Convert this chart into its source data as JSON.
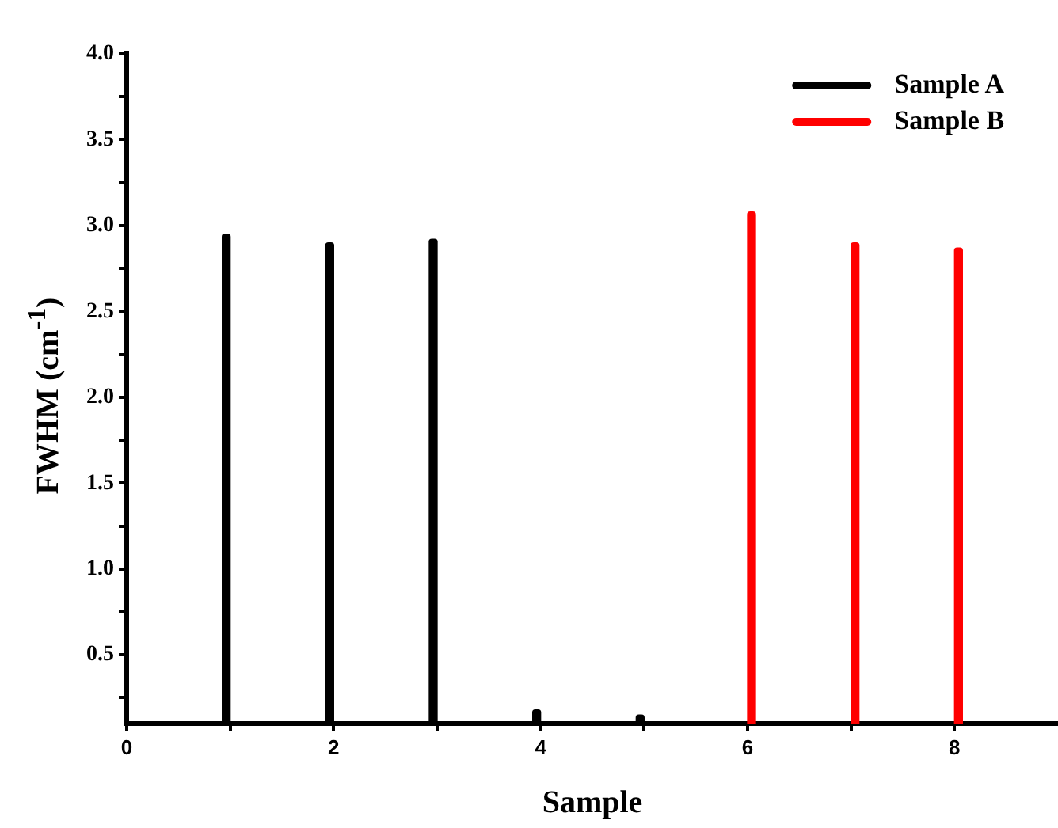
{
  "chart_data": {
    "type": "bar",
    "xlabel": "Sample",
    "ylabel": "FWHM (cm$^{-1}$)",
    "xlim": [
      0,
      9
    ],
    "xticks": [
      0,
      {
        "value": 1,
        "label": null
      },
      2,
      {
        "value": 3,
        "label": null
      },
      4,
      {
        "value": 5,
        "label": null
      },
      6,
      {
        "value": 7,
        "label": null
      },
      8
    ],
    "ylim": [
      0.1,
      4.0
    ],
    "yticks": [
      {
        "value": 0.25,
        "label": null
      },
      0.5,
      {
        "value": 0.75,
        "label": null
      },
      {
        "value": 1,
        "label": "1.0"
      },
      {
        "value": 1.25,
        "label": null
      },
      1.5,
      {
        "value": 1.75,
        "label": null
      },
      {
        "value": 2,
        "label": "2.0"
      },
      {
        "value": 2.25,
        "label": null
      },
      2.5,
      {
        "value": 2.75,
        "label": null
      },
      {
        "value": 3,
        "label": "3.0"
      },
      {
        "value": 3.25,
        "label": null
      },
      3.5,
      {
        "value": 3.75,
        "label": null
      },
      {
        "value": 4,
        "label": "4.0"
      }
    ],
    "series": [
      {
        "name": "Sample A",
        "color": "#000000",
        "x": [
          1,
          2,
          3,
          4,
          5
        ],
        "values": [
          2.95,
          2.9,
          2.92,
          0.18,
          0.15
        ]
      },
      {
        "name": "Sample B",
        "color": "#ff0000",
        "x": [
          6,
          7,
          8
        ],
        "values": [
          3.08,
          2.9,
          2.87
        ]
      }
    ],
    "grid": false,
    "legend": "top right"
  }
}
